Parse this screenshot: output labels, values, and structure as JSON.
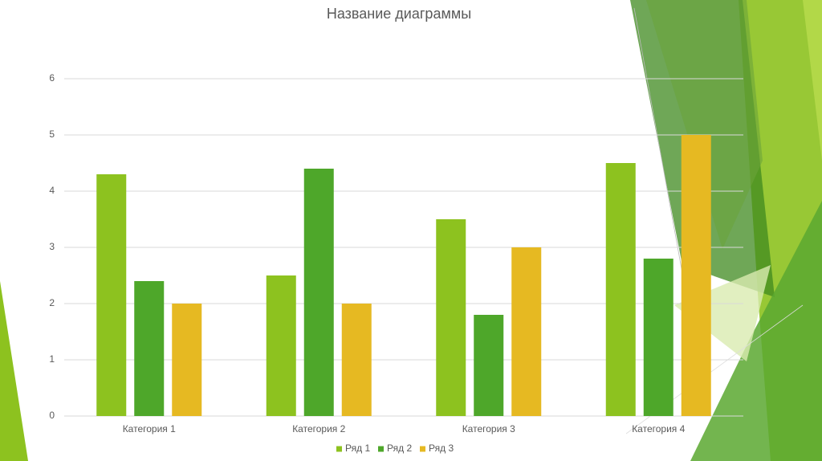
{
  "chart_data": {
    "type": "bar",
    "title": "Название диаграммы",
    "categories": [
      "Категория 1",
      "Категория 2",
      "Категория 3",
      "Категория 4"
    ],
    "series": [
      {
        "name": "Ряд 1",
        "color": "#8dc21f",
        "values": [
          4.3,
          2.5,
          3.5,
          4.5
        ]
      },
      {
        "name": "Ряд 2",
        "color": "#4ea72a",
        "values": [
          2.4,
          4.4,
          1.8,
          2.8
        ]
      },
      {
        "name": "Ряд 3",
        "color": "#e6b922",
        "values": [
          2,
          2,
          3,
          5
        ]
      }
    ],
    "ylim": [
      0,
      6
    ],
    "yticks": [
      0,
      1,
      2,
      3,
      4,
      5,
      6
    ],
    "grid": true,
    "legend": "bottom"
  }
}
